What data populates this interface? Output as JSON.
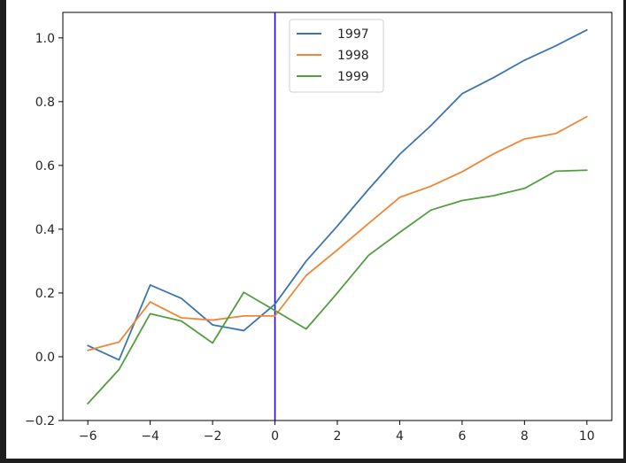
{
  "chart_data": {
    "type": "line",
    "title": "",
    "xlabel": "",
    "ylabel": "",
    "xlim": [
      -6.8,
      10.8
    ],
    "ylim": [
      -0.2,
      1.08
    ],
    "xticks": [
      -6,
      -4,
      -2,
      0,
      2,
      4,
      6,
      8,
      10
    ],
    "xtick_labels": [
      "−6",
      "−4",
      "−2",
      "0",
      "2",
      "4",
      "6",
      "8",
      "10"
    ],
    "yticks": [
      -0.2,
      0.0,
      0.2,
      0.4,
      0.6,
      0.8,
      1.0
    ],
    "ytick_labels": [
      "−0.2",
      "0.0",
      "0.2",
      "0.4",
      "0.6",
      "0.8",
      "1.0"
    ],
    "x": [
      -6,
      -5,
      -4,
      -3,
      -2,
      -1,
      0,
      1,
      2,
      3,
      4,
      5,
      6,
      7,
      8,
      9,
      10
    ],
    "series": [
      {
        "name": "1997",
        "color": "#3b75af",
        "values": [
          0.035,
          -0.01,
          0.225,
          0.183,
          0.1,
          0.082,
          0.165,
          0.3,
          0.41,
          0.525,
          0.635,
          0.725,
          0.825,
          0.875,
          0.93,
          0.975,
          1.025
        ]
      },
      {
        "name": "1998",
        "color": "#ef8636",
        "values": [
          0.02,
          0.046,
          0.172,
          0.122,
          0.115,
          0.128,
          0.128,
          0.255,
          0.335,
          0.418,
          0.5,
          0.535,
          0.58,
          0.636,
          0.683,
          0.7,
          0.753
        ]
      },
      {
        "name": "1999",
        "color": "#519e3e",
        "values": [
          -0.147,
          -0.04,
          0.135,
          0.112,
          0.043,
          0.202,
          0.145,
          0.087,
          0.2,
          0.318,
          0.39,
          0.46,
          0.49,
          0.505,
          0.528,
          0.582,
          0.585
        ]
      }
    ],
    "vline": {
      "x": 0,
      "color": "#1f00ff"
    },
    "legend_placement": "top-center",
    "grid": false
  }
}
